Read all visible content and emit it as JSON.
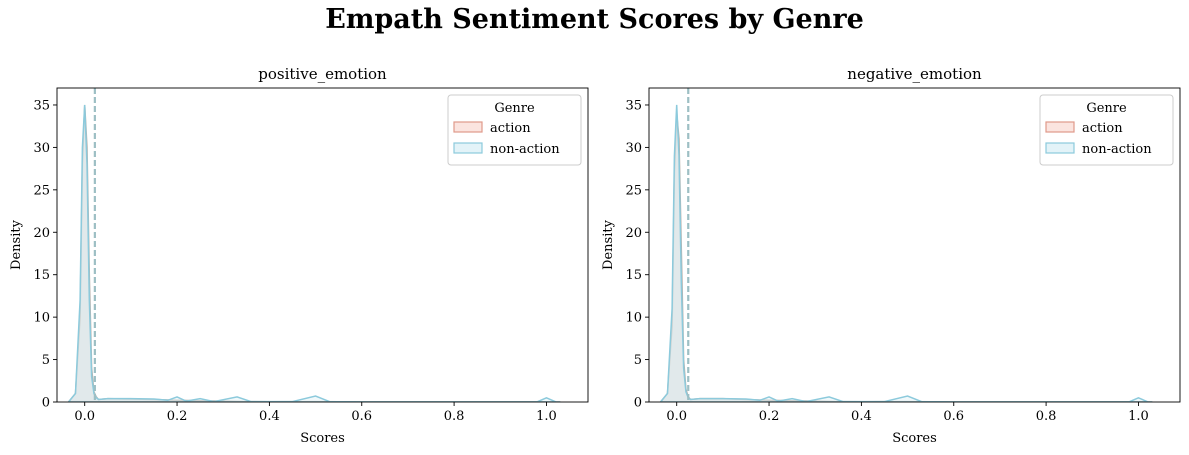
{
  "title": "Empath Sentiment Scores by Genre",
  "colors": {
    "action_fill": "#fbe4df",
    "action_edge": "#e0998a",
    "nonaction_fill": "#e3f3f8",
    "nonaction_edge": "#8ccadc",
    "overlap_fill": "#dcdcdc",
    "mean_line": "#9dbfc4"
  },
  "chart_data": [
    {
      "type": "area",
      "title": "positive_emotion",
      "xlabel": "Scores",
      "ylabel": "Density",
      "xlim": [
        -0.06,
        1.09
      ],
      "ylim": [
        0,
        37
      ],
      "xticks": [
        "0.0",
        "0.2",
        "0.4",
        "0.6",
        "0.8",
        "1.0"
      ],
      "xtick_values": [
        0,
        0.2,
        0.4,
        0.6,
        0.8,
        1.0
      ],
      "yticks": [
        "0",
        "5",
        "10",
        "15",
        "20",
        "25",
        "30",
        "35"
      ],
      "ytick_values": [
        0,
        5,
        10,
        15,
        20,
        25,
        30,
        35
      ],
      "legend": {
        "title": "Genre",
        "entries": [
          "action",
          "non-action"
        ],
        "placement": "upper right"
      },
      "mean_line_x": 0.022,
      "series": [
        {
          "name": "action",
          "x": [
            -0.035,
            -0.02,
            -0.01,
            -0.005,
            0,
            0.005,
            0.01,
            0.015,
            0.02,
            0.025,
            0.03,
            0.05,
            0.1,
            0.15,
            0.2,
            0.25,
            0.3,
            0.35,
            0.4,
            0.5,
            0.6,
            0.8,
            1.0,
            1.03
          ],
          "y": [
            0,
            1,
            10,
            28,
            35,
            30,
            15,
            4,
            1.2,
            0.6,
            0.3,
            0.4,
            0.35,
            0.3,
            0.2,
            0.15,
            0.1,
            0.05,
            0.03,
            0.05,
            0.02,
            0.01,
            0.02,
            0
          ]
        },
        {
          "name": "non-action",
          "x": [
            -0.035,
            -0.02,
            -0.01,
            -0.005,
            0,
            0.005,
            0.01,
            0.015,
            0.02,
            0.025,
            0.03,
            0.05,
            0.1,
            0.15,
            0.18,
            0.2,
            0.22,
            0.25,
            0.28,
            0.33,
            0.36,
            0.45,
            0.5,
            0.53,
            0.6,
            0.8,
            0.98,
            1.0,
            1.02,
            1.03
          ],
          "y": [
            0,
            1,
            12,
            30,
            35,
            28,
            12,
            3,
            1,
            0.5,
            0.3,
            0.4,
            0.4,
            0.35,
            0.2,
            0.6,
            0.1,
            0.4,
            0.05,
            0.6,
            0.05,
            0.05,
            0.7,
            0.05,
            0.02,
            0.01,
            0.02,
            0.5,
            0.02,
            0
          ]
        }
      ]
    },
    {
      "type": "area",
      "title": "negative_emotion",
      "xlabel": "Scores",
      "ylabel": "Density",
      "xlim": [
        -0.06,
        1.09
      ],
      "ylim": [
        0,
        37
      ],
      "xticks": [
        "0.0",
        "0.2",
        "0.4",
        "0.6",
        "0.8",
        "1.0"
      ],
      "xtick_values": [
        0,
        0.2,
        0.4,
        0.6,
        0.8,
        1.0
      ],
      "yticks": [
        "0",
        "5",
        "10",
        "15",
        "20",
        "25",
        "30",
        "35"
      ],
      "ytick_values": [
        0,
        5,
        10,
        15,
        20,
        25,
        30,
        35
      ],
      "legend": {
        "title": "Genre",
        "entries": [
          "action",
          "non-action"
        ],
        "placement": "upper right"
      },
      "mean_line_x": 0.025,
      "series": [
        {
          "name": "action",
          "x": [
            -0.035,
            -0.02,
            -0.01,
            -0.005,
            0,
            0.005,
            0.01,
            0.015,
            0.02,
            0.025,
            0.03,
            0.05,
            0.1,
            0.15,
            0.2,
            0.25,
            0.3,
            0.35,
            0.4,
            0.5,
            0.6,
            0.8,
            1.0,
            1.03
          ],
          "y": [
            0,
            1,
            9,
            27,
            34,
            31,
            18,
            5,
            1.5,
            0.6,
            0.3,
            0.4,
            0.4,
            0.3,
            0.2,
            0.15,
            0.1,
            0.05,
            0.03,
            0.05,
            0.02,
            0.01,
            0.02,
            0
          ]
        },
        {
          "name": "non-action",
          "x": [
            -0.035,
            -0.02,
            -0.01,
            -0.005,
            0,
            0.005,
            0.01,
            0.015,
            0.02,
            0.025,
            0.03,
            0.05,
            0.1,
            0.15,
            0.18,
            0.2,
            0.22,
            0.25,
            0.28,
            0.33,
            0.36,
            0.45,
            0.5,
            0.53,
            0.6,
            0.8,
            0.98,
            1.0,
            1.02,
            1.03
          ],
          "y": [
            0,
            1,
            11,
            29,
            35,
            29,
            14,
            4,
            1.2,
            0.5,
            0.3,
            0.4,
            0.4,
            0.35,
            0.2,
            0.6,
            0.1,
            0.4,
            0.05,
            0.6,
            0.05,
            0.05,
            0.7,
            0.05,
            0.02,
            0.01,
            0.02,
            0.5,
            0.02,
            0
          ]
        }
      ]
    }
  ]
}
